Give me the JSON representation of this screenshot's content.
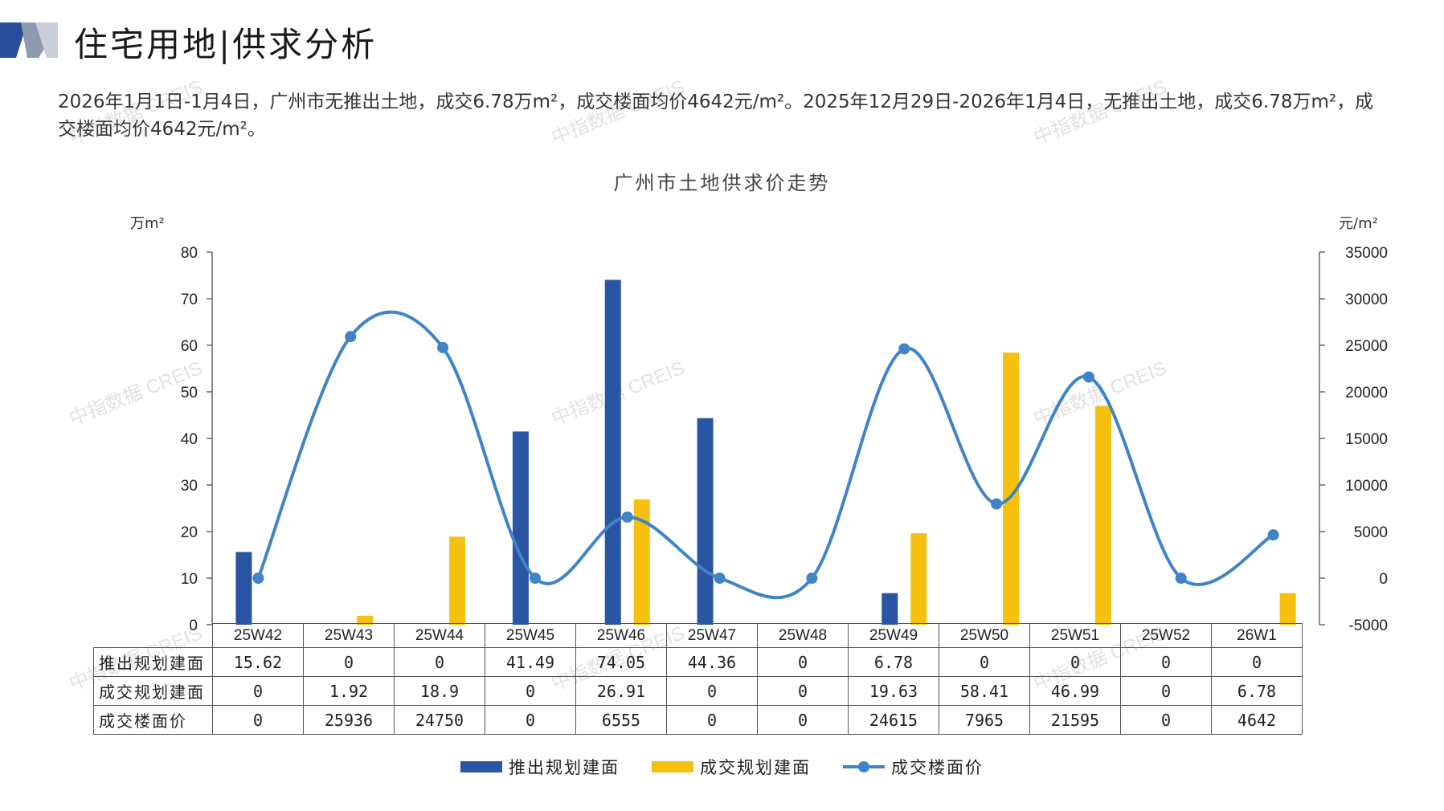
{
  "header": {
    "title": "住宅用地|供求分析",
    "description": "2026年1月1日-1月4日，广州市无推出土地，成交6.78万m²，成交楼面均价4642元/m²。2025年12月29日-2026年1月4日，无推出土地，成交6.78万m²，成交楼面均价4642元/m²。"
  },
  "watermark": "中指数据 CREIS",
  "chart_data": {
    "type": "bar",
    "title": "广州市土地供求价走势",
    "y_left_unit": "万m²",
    "y_right_unit": "元/m²",
    "ylim_left": [
      0,
      80
    ],
    "ylim_right": [
      -5000,
      35000
    ],
    "y_left_ticks": [
      0,
      10,
      20,
      30,
      40,
      50,
      60,
      70,
      80
    ],
    "y_right_ticks": [
      -5000,
      0,
      5000,
      10000,
      15000,
      20000,
      25000,
      30000,
      35000
    ],
    "categories": [
      "25W42",
      "25W43",
      "25W44",
      "25W45",
      "25W46",
      "25W47",
      "25W48",
      "25W49",
      "25W50",
      "25W51",
      "25W52",
      "26W1"
    ],
    "series": [
      {
        "name": "推出规划建面",
        "kind": "bar",
        "axis": "left",
        "color": "#2A55A3",
        "values": [
          15.62,
          0,
          0,
          41.49,
          74.05,
          44.36,
          0,
          6.78,
          0,
          0,
          0,
          0
        ],
        "labels": [
          "15.62",
          "0",
          "0",
          "41.49",
          "74.05",
          "44.36",
          "0",
          "6.78",
          "0",
          "0",
          "0",
          "0"
        ]
      },
      {
        "name": "成交规划建面",
        "kind": "bar",
        "axis": "left",
        "color": "#F7C00F",
        "values": [
          0,
          1.92,
          18.9,
          0,
          26.91,
          0,
          0,
          19.63,
          58.41,
          46.99,
          0,
          6.78
        ],
        "labels": [
          "0",
          "1.92",
          "18.9",
          "0",
          "26.91",
          "0",
          "0",
          "19.63",
          "58.41",
          "46.99",
          "0",
          "6.78"
        ]
      },
      {
        "name": "成交楼面价",
        "kind": "line",
        "axis": "right",
        "color": "#3E84C6",
        "values": [
          0,
          25936,
          24750,
          0,
          6555,
          0,
          0,
          24615,
          7965,
          21595,
          0,
          4642
        ],
        "labels": [
          "0",
          "25936",
          "24750",
          "0",
          "6555",
          "0",
          "0",
          "24615",
          "7965",
          "21595",
          "0",
          "4642"
        ]
      }
    ]
  }
}
